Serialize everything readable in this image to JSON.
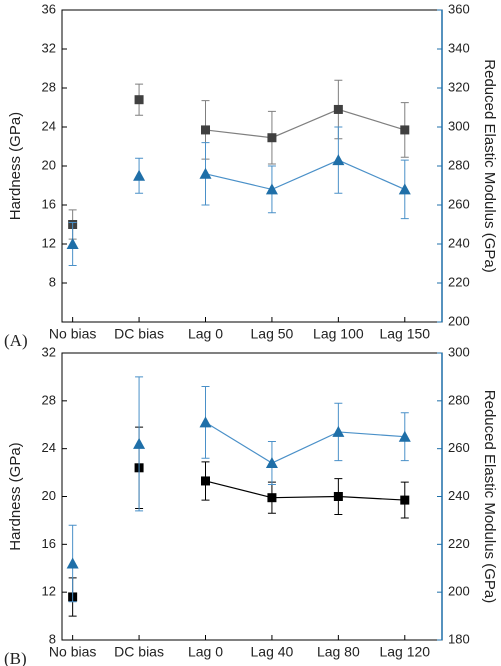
{
  "chart_data": [
    {
      "type": "line",
      "panel_label": "(A)",
      "y_label": "Hardness (GPa)",
      "y2_label": "Reduced Elastic Modulus (GPa)",
      "categories": [
        "No bias",
        "DC bias",
        "Lag 0",
        "Lag 50",
        "Lag 100",
        "Lag 150"
      ],
      "ylim": [
        4,
        36
      ],
      "yticks": [
        8,
        12,
        16,
        20,
        24,
        28,
        32,
        36
      ],
      "y2lim": [
        200,
        360
      ],
      "y2ticks": [
        200,
        220,
        240,
        260,
        280,
        300,
        320,
        340,
        360
      ],
      "y2_color": "#1f6fa8",
      "series": [
        {
          "color": "#404040",
          "line_color": "#7f7f7f",
          "marker": "square",
          "values": [
            14,
            26.8,
            23.7,
            22.9,
            25.8,
            23.7
          ],
          "errors": [
            1.5,
            1.6,
            3,
            2.7,
            3,
            2.8
          ]
        },
        {
          "color": "#1f6fa8",
          "line_color": "#4a90c8",
          "marker": "triangle",
          "axis": "y2",
          "values": [
            240,
            275,
            276,
            268,
            283,
            268
          ],
          "errors": [
            11,
            9,
            16,
            12,
            17,
            15
          ]
        }
      ]
    },
    {
      "type": "line",
      "panel_label": "(B)",
      "y_label": "Hardness (GPa)",
      "y2_label": "Reduced Elastic Modulus (GPa)",
      "categories": [
        "No bias",
        "DC bias",
        "Lag 0",
        "Lag 40",
        "Lag 80",
        "Lag 120"
      ],
      "ylim": [
        8,
        32
      ],
      "yticks": [
        8,
        12,
        16,
        20,
        24,
        28,
        32
      ],
      "y2lim": [
        180,
        300
      ],
      "y2ticks": [
        180,
        200,
        220,
        240,
        260,
        280,
        300
      ],
      "y2_color": "#1f6fa8",
      "series": [
        {
          "color": "#000000",
          "line_color": "#000000",
          "marker": "square",
          "values": [
            11.6,
            22.4,
            21.3,
            19.9,
            20,
            19.7
          ],
          "errors": [
            1.6,
            3.4,
            1.6,
            1.3,
            1.5,
            1.5
          ]
        },
        {
          "color": "#1f6fa8",
          "line_color": "#4a90c8",
          "marker": "triangle",
          "axis": "y2",
          "values": [
            212,
            262,
            271,
            254,
            267,
            265
          ],
          "errors": [
            16,
            28,
            15,
            9,
            12,
            10
          ]
        }
      ]
    }
  ]
}
